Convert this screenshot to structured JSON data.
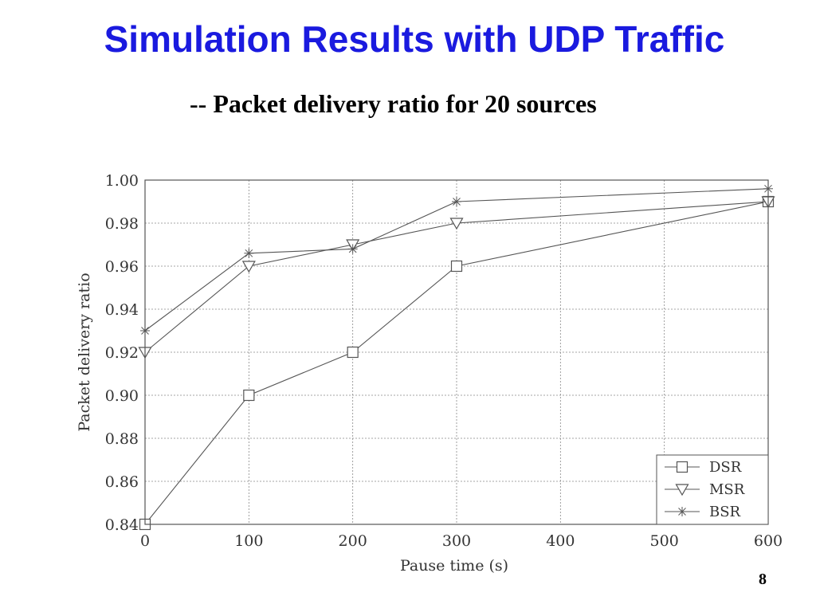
{
  "slide": {
    "title": "Simulation Results with UDP Traffic",
    "subtitle": "-- Packet delivery ratio for 20 sources",
    "page_number": "8"
  },
  "chart_data": {
    "type": "line",
    "title": "",
    "xlabel": "Pause time (s)",
    "ylabel": "Packet delivery ratio",
    "x_ticks": [
      "0",
      "100",
      "200",
      "300",
      "400",
      "500",
      "600"
    ],
    "y_ticks": [
      "0.84",
      "0.86",
      "0.88",
      "0.90",
      "0.92",
      "0.94",
      "0.96",
      "0.98",
      "1.00"
    ],
    "xlim": [
      0,
      600
    ],
    "ylim": [
      0.84,
      1.0
    ],
    "grid": true,
    "legend_position": "bottom-right",
    "line_color": "#555555",
    "series": [
      {
        "name": "DSR",
        "marker": "square",
        "x": [
          0,
          100,
          200,
          300,
          600
        ],
        "y": [
          0.84,
          0.9,
          0.92,
          0.96,
          0.99
        ]
      },
      {
        "name": "MSR",
        "marker": "triangle-down",
        "x": [
          0,
          100,
          200,
          300,
          600
        ],
        "y": [
          0.92,
          0.96,
          0.97,
          0.98,
          0.99
        ]
      },
      {
        "name": "BSR",
        "marker": "star",
        "x": [
          0,
          100,
          200,
          300,
          600
        ],
        "y": [
          0.93,
          0.966,
          0.968,
          0.99,
          0.996
        ]
      }
    ]
  }
}
